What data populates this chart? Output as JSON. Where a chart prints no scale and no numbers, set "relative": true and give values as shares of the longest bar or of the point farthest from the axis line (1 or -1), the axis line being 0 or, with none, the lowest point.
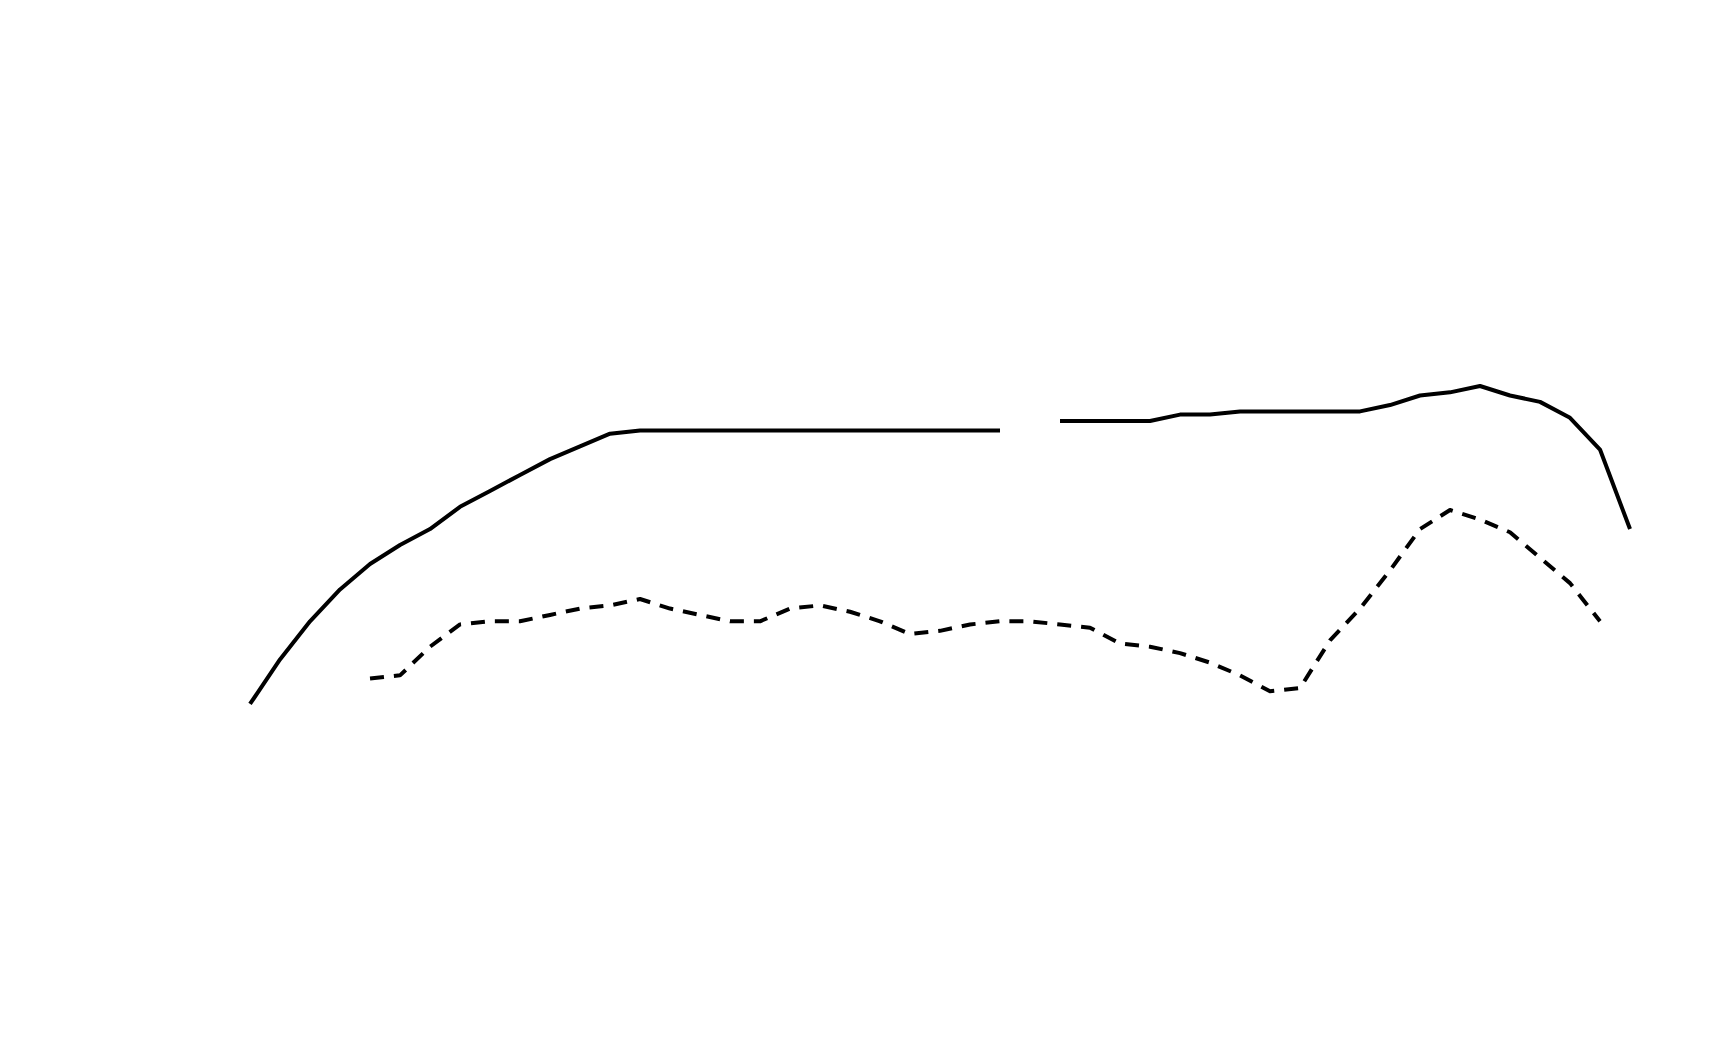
{
  "chart_data": {
    "type": "line",
    "relative": true,
    "categories": [
      null,
      null,
      null,
      null,
      null,
      null,
      null,
      null,
      null,
      null,
      null,
      null,
      null,
      null,
      null,
      null,
      null,
      null,
      null,
      null,
      null,
      null,
      null,
      null,
      null,
      null,
      null,
      null,
      null,
      null,
      null,
      null,
      null,
      null,
      null,
      null,
      null,
      null,
      null,
      null,
      null,
      null,
      null,
      null,
      null,
      null,
      null
    ],
    "series": [
      {
        "color": "#000000",
        "line_style": "solid",
        "values": [
          0,
          0.14,
          0.26,
          0.36,
          0.44,
          0.5,
          0.55,
          0.62,
          0.67,
          0.72,
          0.77,
          0.81,
          0.85,
          0.86,
          0.86,
          0.86,
          0.86,
          0.86,
          0.86,
          0.86,
          0.86,
          0.86,
          0.86,
          0.86,
          0.86,
          0.86,
          null,
          0.89,
          0.89,
          0.89,
          0.89,
          0.91,
          0.91,
          0.92,
          0.92,
          0.92,
          0.92,
          0.92,
          0.94,
          0.97,
          0.98,
          1.0,
          0.97,
          0.95,
          0.9,
          0.8,
          0.55
        ]
      },
      {
        "color": "#000000",
        "line_style": "dashed",
        "values": [
          null,
          null,
          null,
          null,
          0.08,
          0.09,
          0.18,
          0.25,
          0.26,
          0.26,
          0.28,
          0.3,
          0.31,
          0.33,
          0.3,
          0.28,
          0.26,
          0.26,
          0.3,
          0.31,
          0.29,
          0.26,
          0.22,
          0.23,
          0.25,
          0.26,
          0.26,
          0.25,
          0.24,
          0.19,
          0.18,
          0.16,
          0.13,
          0.09,
          0.04,
          0.05,
          0.2,
          0.3,
          0.42,
          0.55,
          0.61,
          0.58,
          0.54,
          0.46,
          0.38,
          0.26,
          null
        ]
      }
    ]
  }
}
